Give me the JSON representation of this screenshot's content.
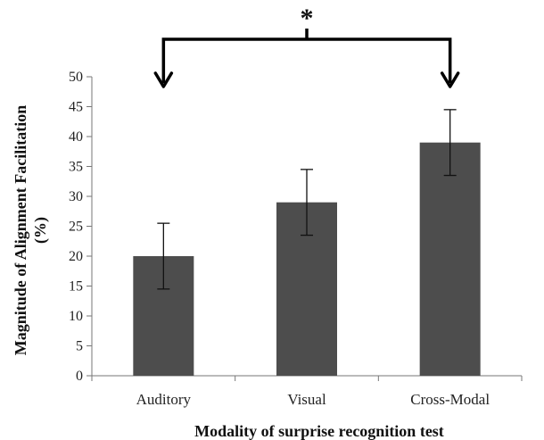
{
  "chart_data": {
    "type": "bar",
    "categories": [
      "Auditory",
      "Visual",
      "Cross-Modal"
    ],
    "values": [
      20,
      29,
      39
    ],
    "error": [
      5.5,
      5.5,
      5.5
    ],
    "xlabel": "Modality of surprise recognition test",
    "ylabel_line1": "Magnitude of Alignment Facilitation",
    "ylabel_line2": "(%)",
    "ylim": [
      0,
      50
    ],
    "yticks": [
      0,
      5,
      10,
      15,
      20,
      25,
      30,
      35,
      40,
      45,
      50
    ],
    "bar_color": "#4d4d4d",
    "grid": false,
    "annotation": {
      "text": "*",
      "from": "Auditory",
      "to": "Cross-Modal"
    }
  }
}
